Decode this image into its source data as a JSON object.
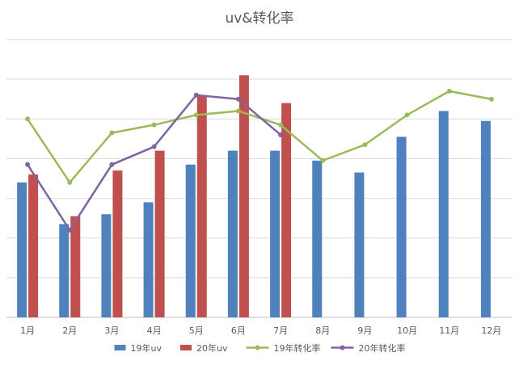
{
  "chart_data": {
    "type": "bar",
    "title": "uv&转化率",
    "xlabel": "",
    "ylabel": "",
    "categories": [
      "1月",
      "2月",
      "3月",
      "4月",
      "5月",
      "6月",
      "7月",
      "8月",
      "9月",
      "10月",
      "11月",
      "12月"
    ],
    "ylim": [
      0,
      7
    ],
    "grid": true,
    "legend_position": "bottom",
    "series": [
      {
        "name": "19年uv",
        "type": "bar",
        "color": "#4F81BD",
        "values": [
          3.4,
          2.35,
          2.6,
          2.9,
          3.85,
          4.2,
          4.2,
          3.95,
          3.65,
          4.55,
          5.2,
          4.95
        ]
      },
      {
        "name": "20年uv",
        "type": "bar",
        "color": "#C0504D",
        "values": [
          3.6,
          2.55,
          3.7,
          4.2,
          5.6,
          6.1,
          5.4,
          null,
          null,
          null,
          null,
          null
        ]
      },
      {
        "name": "19年转化率",
        "type": "line",
        "color": "#9BBB59",
        "values": [
          5.0,
          3.4,
          4.65,
          4.85,
          5.1,
          5.2,
          4.85,
          3.95,
          4.35,
          5.1,
          5.7,
          5.5
        ]
      },
      {
        "name": "20年转化率",
        "type": "line",
        "color": "#8064A2",
        "values": [
          3.85,
          2.2,
          3.85,
          4.3,
          5.6,
          5.5,
          4.6,
          null,
          null,
          null,
          null,
          null
        ]
      }
    ]
  }
}
